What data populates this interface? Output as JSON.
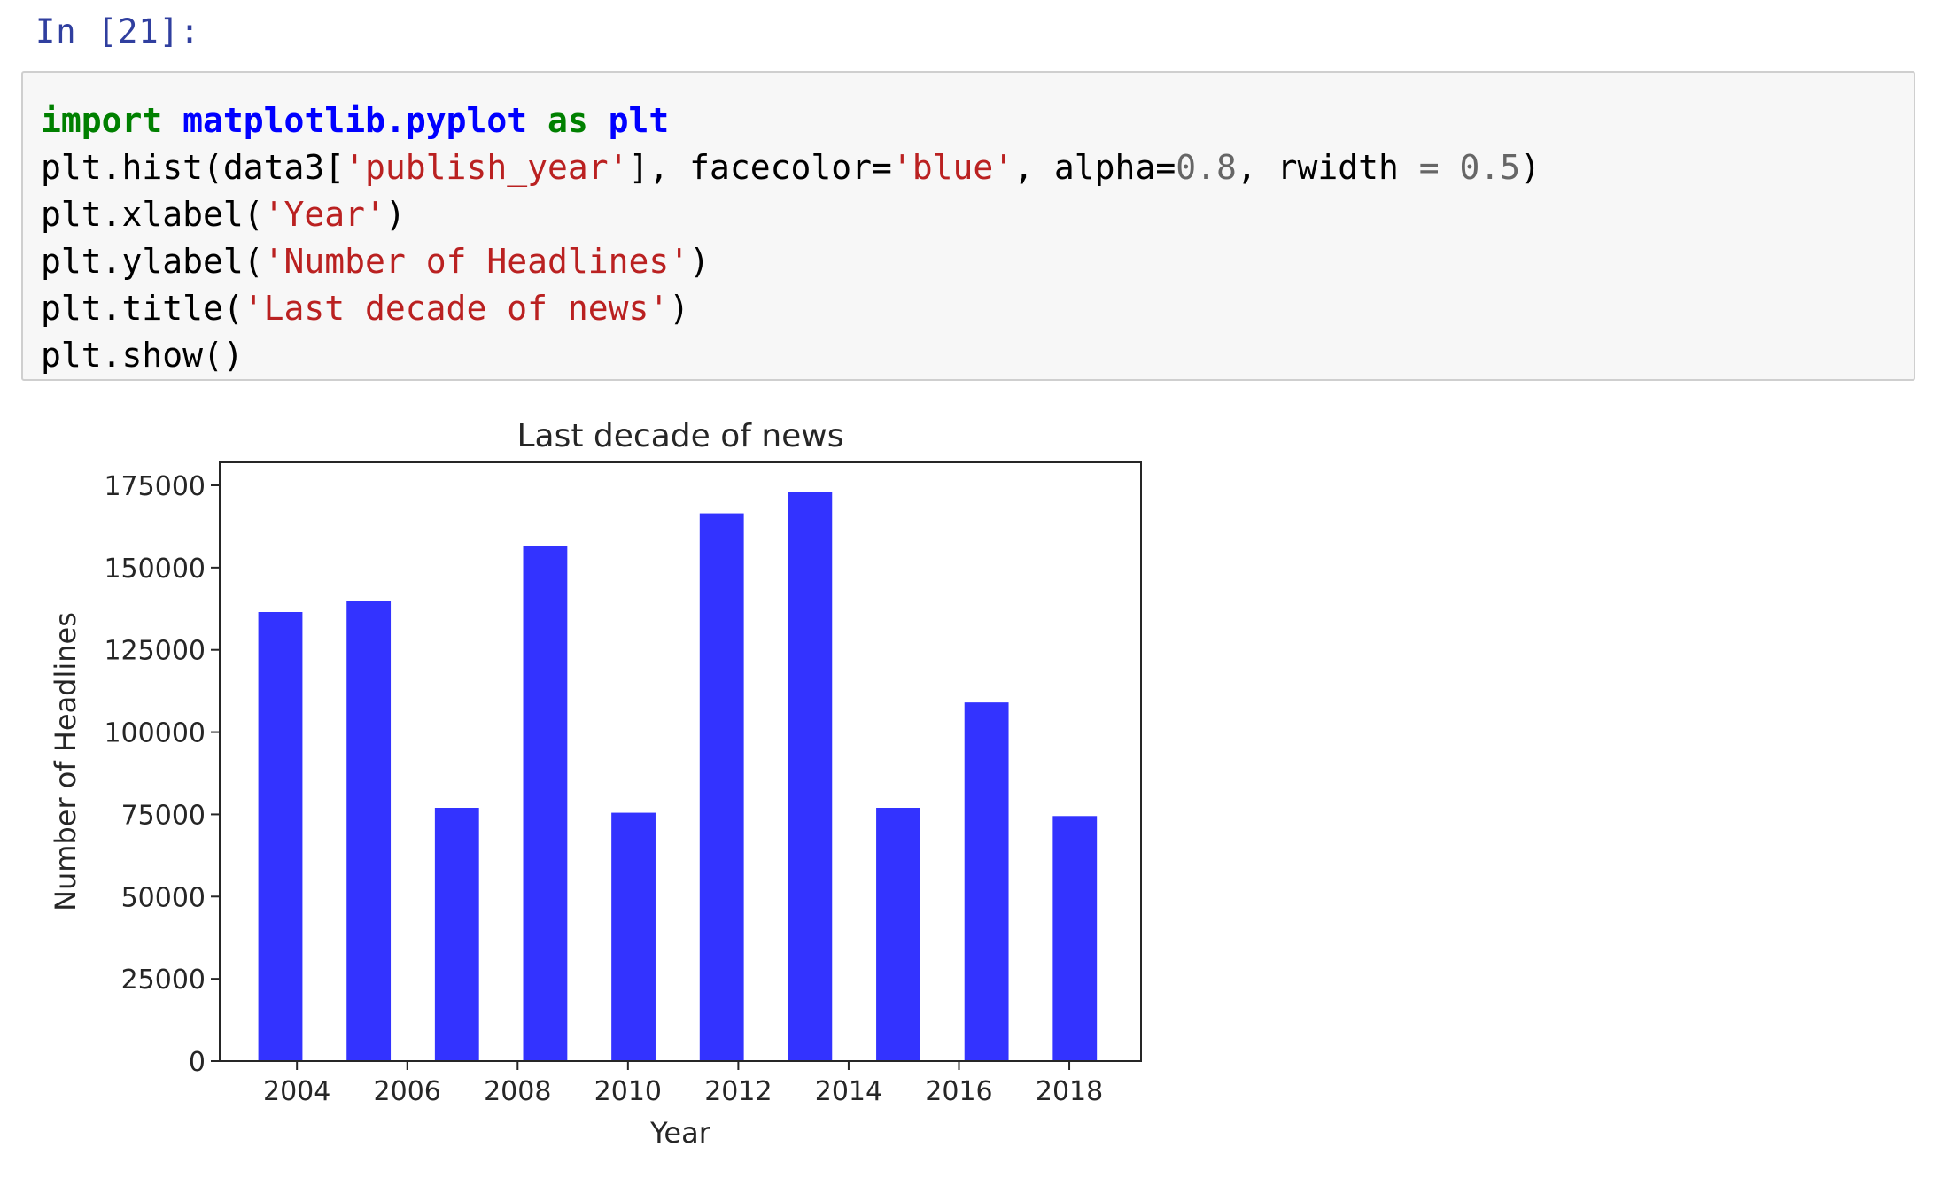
{
  "cell": {
    "prompt": "In [21]:",
    "code": {
      "line1": {
        "kw_import": "import",
        "module": "matplotlib.pyplot",
        "kw_as": "as",
        "alias": "plt"
      },
      "line2": {
        "p1": "plt.hist(data3[",
        "s1": "'publish_year'",
        "p2": "], facecolor=",
        "s2": "'blue'",
        "p3": ", alpha=",
        "n1": "0.8",
        "p4": ", rwidth ",
        "eq": "=",
        "p5": " ",
        "n2": "0.5",
        "p6": ")"
      },
      "line3": {
        "p1": "plt.xlabel(",
        "s1": "'Year'",
        "p2": ")"
      },
      "line4": {
        "p1": "plt.ylabel(",
        "s1": "'Number of Headlines'",
        "p2": ")"
      },
      "line5": {
        "p1": "plt.title(",
        "s1": "'Last decade of news'",
        "p2": ")"
      },
      "line6": {
        "p1": "plt.show()"
      }
    }
  },
  "chart_data": {
    "type": "bar",
    "title": "Last decade of news",
    "xlabel": "Year",
    "ylabel": "Number of Headlines",
    "bar_color": "#3333ff",
    "x_bin_centers": [
      2003.7,
      2005.3,
      2006.9,
      2008.5,
      2010.1,
      2011.7,
      2013.3,
      2014.9,
      2016.5,
      2018.1
    ],
    "values": [
      136500,
      140000,
      77000,
      156500,
      75500,
      166500,
      173000,
      77000,
      109000,
      74500
    ],
    "xlim": [
      2002.6,
      2019.3
    ],
    "ylim": [
      0,
      182000
    ],
    "xticks": [
      2004,
      2006,
      2008,
      2010,
      2012,
      2014,
      2016,
      2018
    ],
    "yticks": [
      0,
      25000,
      50000,
      75000,
      100000,
      125000,
      150000,
      175000
    ],
    "bin_width": 1.6,
    "rwidth": 0.5,
    "grid": false
  }
}
